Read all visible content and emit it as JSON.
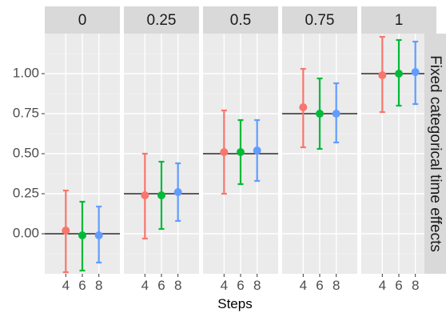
{
  "chart_data": {
    "type": "scatter",
    "subtype": "faceted point-range (point estimate with error bar)",
    "xlabel": "Steps",
    "ylabel": "",
    "right_strip_label": "Fixed categorical time effects",
    "facets": [
      "0",
      "0.25",
      "0.5",
      "0.75",
      "1"
    ],
    "x_categories": [
      "4",
      "6",
      "8"
    ],
    "y_ticks": [
      0.0,
      0.25,
      0.5,
      0.75,
      1.0
    ],
    "y_tick_labels": [
      "0.00",
      "0.25",
      "0.50",
      "0.75",
      "1.00"
    ],
    "ylim": [
      -0.25,
      1.25
    ],
    "grid": true,
    "legend": "none",
    "series_colors": {
      "4": "#f8766d",
      "6": "#00ba38",
      "8": "#619cff"
    },
    "reference_lines": [
      0,
      0.25,
      0.5,
      0.75,
      1
    ],
    "points": [
      {
        "facet": "0",
        "step": "4",
        "estimate": 0.02,
        "lower": -0.24,
        "upper": 0.27
      },
      {
        "facet": "0",
        "step": "6",
        "estimate": -0.01,
        "lower": -0.23,
        "upper": 0.2
      },
      {
        "facet": "0",
        "step": "8",
        "estimate": -0.01,
        "lower": -0.18,
        "upper": 0.17
      },
      {
        "facet": "0.25",
        "step": "4",
        "estimate": 0.24,
        "lower": -0.03,
        "upper": 0.5
      },
      {
        "facet": "0.25",
        "step": "6",
        "estimate": 0.24,
        "lower": 0.03,
        "upper": 0.45
      },
      {
        "facet": "0.25",
        "step": "8",
        "estimate": 0.26,
        "lower": 0.08,
        "upper": 0.44
      },
      {
        "facet": "0.5",
        "step": "4",
        "estimate": 0.51,
        "lower": 0.25,
        "upper": 0.77
      },
      {
        "facet": "0.5",
        "step": "6",
        "estimate": 0.51,
        "lower": 0.31,
        "upper": 0.71
      },
      {
        "facet": "0.5",
        "step": "8",
        "estimate": 0.52,
        "lower": 0.33,
        "upper": 0.71
      },
      {
        "facet": "0.75",
        "step": "4",
        "estimate": 0.79,
        "lower": 0.54,
        "upper": 1.03
      },
      {
        "facet": "0.75",
        "step": "6",
        "estimate": 0.75,
        "lower": 0.53,
        "upper": 0.97
      },
      {
        "facet": "0.75",
        "step": "8",
        "estimate": 0.75,
        "lower": 0.57,
        "upper": 0.94
      },
      {
        "facet": "1",
        "step": "4",
        "estimate": 0.99,
        "lower": 0.76,
        "upper": 1.23
      },
      {
        "facet": "1",
        "step": "6",
        "estimate": 1.0,
        "lower": 0.8,
        "upper": 1.21
      },
      {
        "facet": "1",
        "step": "8",
        "estimate": 1.01,
        "lower": 0.81,
        "upper": 1.2
      }
    ]
  }
}
